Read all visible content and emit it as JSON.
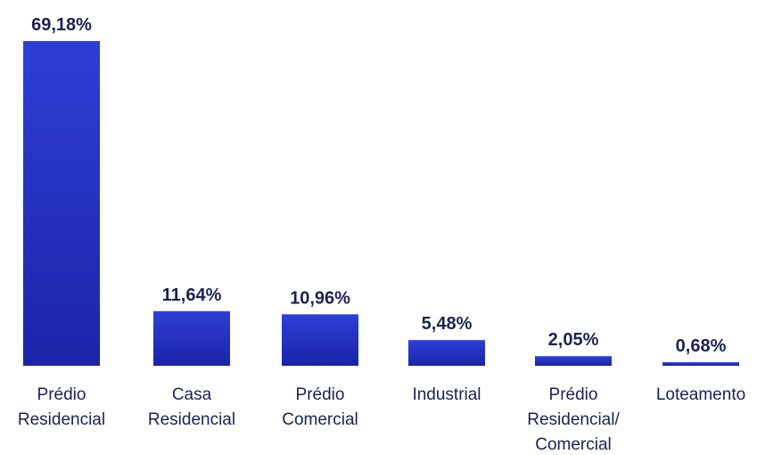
{
  "chart_data": {
    "type": "bar",
    "categories": [
      [
        "Prédio",
        "Residencial"
      ],
      [
        "Casa",
        "Residencial"
      ],
      [
        "Prédio",
        "Comercial"
      ],
      [
        "Industrial"
      ],
      [
        "Prédio",
        "Residencial/",
        "Comercial"
      ],
      [
        "Loteamento"
      ]
    ],
    "values": [
      69.18,
      11.64,
      10.96,
      5.48,
      2.05,
      0.68
    ],
    "value_labels": [
      "69,18%",
      "11,64%",
      "10,96%",
      "5,48%",
      "2,05%",
      "0,68%"
    ],
    "title": "",
    "xlabel": "",
    "ylabel": "",
    "ylim": [
      0,
      69.18
    ],
    "grid": false,
    "legend": "none",
    "colors": {
      "bar_top": "#2d3fd6",
      "bar_bottom": "#1b24a8",
      "text": "#1d2250"
    }
  }
}
